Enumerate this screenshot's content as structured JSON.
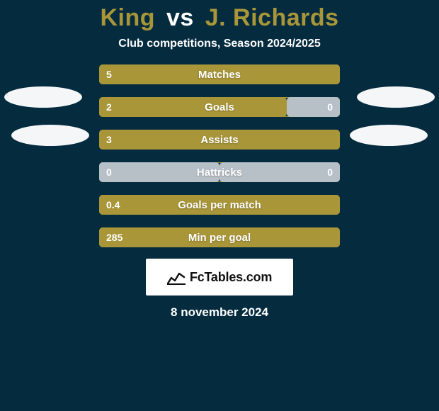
{
  "background_color": "#052b3f",
  "accent_color": "#a99639",
  "secondary_fill_color": "#b7c0c7",
  "bar_border_color": "#a99639",
  "text_color": "#ffffff",
  "orb_color": "#f4f6f7",
  "title": {
    "player_a": "King",
    "vs": "vs",
    "player_b": "J. Richards",
    "player_a_color": "#a99639",
    "vs_color": "#ffffff",
    "player_b_color": "#a99639",
    "fontsize": 34
  },
  "subtitle": {
    "text": "Club competitions, Season 2024/2025",
    "fontsize": 16,
    "color": "#ffffff"
  },
  "bars": [
    {
      "label": "Matches",
      "left": "5",
      "right": "",
      "left_pct": 100,
      "right_pct": 0,
      "left_color": "#a99639",
      "right_color": "#a99639"
    },
    {
      "label": "Goals",
      "left": "2",
      "right": "0",
      "left_pct": 78,
      "right_pct": 22,
      "left_color": "#a99639",
      "right_color": "#b7c0c7"
    },
    {
      "label": "Assists",
      "left": "3",
      "right": "",
      "left_pct": 100,
      "right_pct": 0,
      "left_color": "#a99639",
      "right_color": "#a99639"
    },
    {
      "label": "Hattricks",
      "left": "0",
      "right": "0",
      "left_pct": 50,
      "right_pct": 50,
      "left_color": "#b7c0c7",
      "right_color": "#b7c0c7"
    },
    {
      "label": "Goals per match",
      "left": "0.4",
      "right": "",
      "left_pct": 100,
      "right_pct": 0,
      "left_color": "#a99639",
      "right_color": "#a99639"
    },
    {
      "label": "Min per goal",
      "left": "285",
      "right": "",
      "left_pct": 100,
      "right_pct": 0,
      "left_color": "#a99639",
      "right_color": "#a99639"
    }
  ],
  "footer": {
    "brand": "FcTables.com",
    "brand_color": "#111111",
    "brand_fontsize": 18,
    "date": "8 november 2024",
    "date_fontsize": 17
  }
}
